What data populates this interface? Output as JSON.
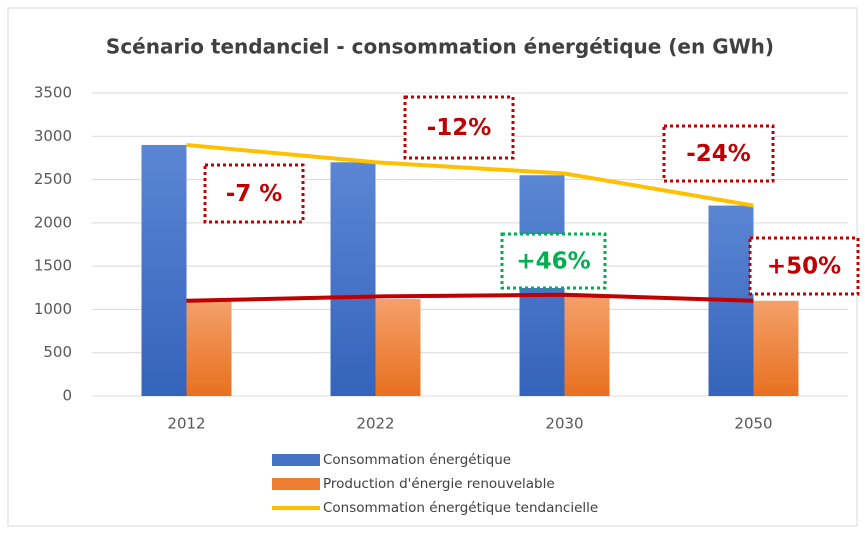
{
  "chart_data": {
    "type": "bar",
    "title": "Scénario tendanciel - consommation énergétique (en GWh)",
    "categories": [
      "2012",
      "2022",
      "2030",
      "2050"
    ],
    "series": [
      {
        "name": "Consommation énergétique",
        "color": "#4472c4",
        "type": "bar",
        "values": [
          2900,
          2700,
          2550,
          2200
        ]
      },
      {
        "name": "Production d'énergie renouvelable",
        "color": "#ed7d31",
        "type": "bar",
        "values": [
          1100,
          1120,
          1150,
          1100
        ]
      },
      {
        "name": "Consommation énergétique tendancielle",
        "color": "#ffc000",
        "type": "line",
        "values": [
          2900,
          2700,
          2570,
          2200
        ]
      },
      {
        "color": "#c00000",
        "type": "line",
        "values": [
          1100,
          1150,
          1170,
          1100
        ]
      }
    ],
    "annotations": [
      {
        "text": "-7 %",
        "color": "#c00000"
      },
      {
        "text": "-12%",
        "color": "#c00000"
      },
      {
        "text": "-24%",
        "color": "#c00000"
      },
      {
        "text": "+46%",
        "color": "#00b050"
      },
      {
        "text": "+50%",
        "color": "#c00000"
      }
    ],
    "ylim": [
      0,
      3500
    ],
    "yticks": [
      0,
      500,
      1000,
      1500,
      2000,
      2500,
      3000,
      3500
    ],
    "grid": true
  }
}
